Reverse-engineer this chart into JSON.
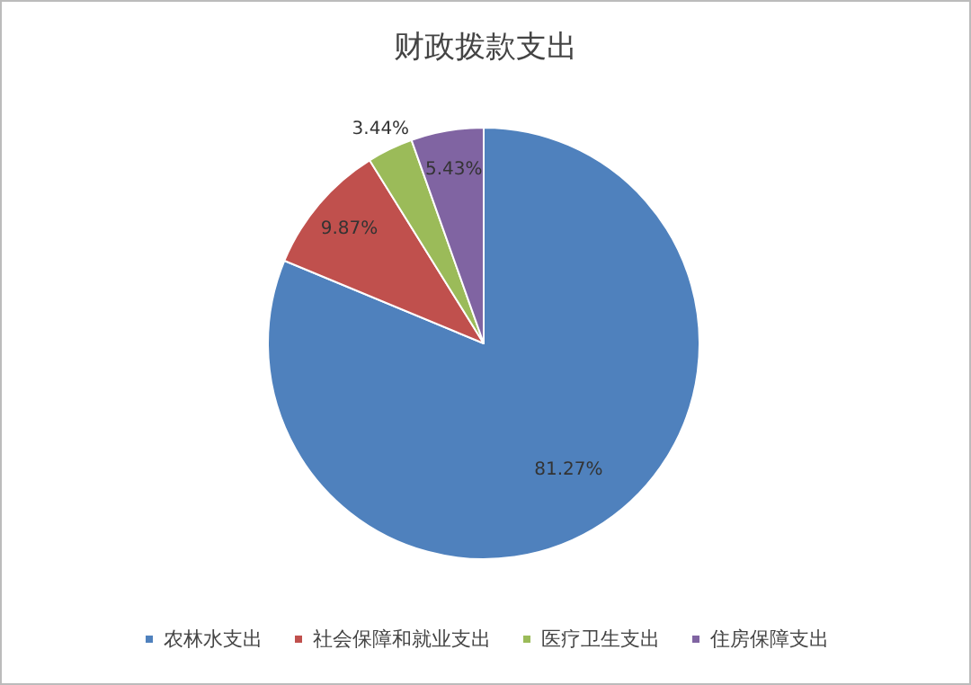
{
  "chart_data": {
    "type": "pie",
    "title": "财政拨款支出",
    "categories": [
      "农林水支出",
      "社会保障和就业支出",
      "医疗卫生支出",
      "住房保障支出"
    ],
    "values": [
      81.27,
      9.87,
      3.44,
      5.43
    ],
    "colors": [
      "#4f81bd",
      "#c0504d",
      "#9bbb59",
      "#8064a2"
    ],
    "value_labels": [
      "81.27%",
      "9.87%",
      "3.44%",
      "5.43%"
    ],
    "legend": "bottom"
  }
}
